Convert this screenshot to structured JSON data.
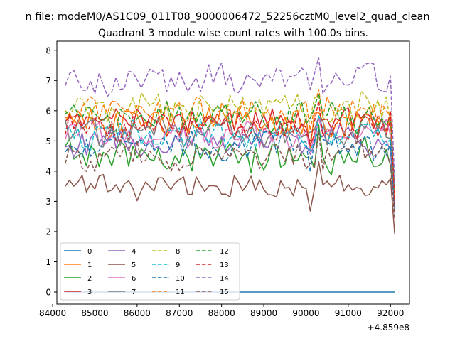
{
  "chart_data": {
    "type": "line",
    "suptitle": "n file: modeM0/AS1C09_011T08_9000006472_52256cztM0_level2_quad_clean",
    "title": "Quadrant 3 module wise count rates with 100.0s bins.",
    "xlabel": "",
    "ylabel": "",
    "x_offset_label": "+4.859e8",
    "xlim": [
      84100,
      92450
    ],
    "ylim": [
      -0.4,
      8.3
    ],
    "x_ticks": [
      84000,
      85000,
      86000,
      87000,
      88000,
      89000,
      90000,
      91000,
      92000
    ],
    "x_tick_labels": [
      "84000",
      "85000",
      "86000",
      "87000",
      "88000",
      "89000",
      "90000",
      "91000",
      "92000"
    ],
    "y_ticks": [
      0,
      1,
      2,
      3,
      4,
      5,
      6,
      7,
      8
    ],
    "y_tick_labels": [
      "0",
      "1",
      "2",
      "3",
      "4",
      "5",
      "6",
      "7",
      "8"
    ],
    "grid": false,
    "legend_position": "lower-left",
    "legend_columns": 4,
    "x": {
      "start": 84300,
      "step": 100,
      "count": 79
    },
    "series": [
      {
        "name": "0",
        "color": "#1f77b4",
        "style": "solid",
        "base": 0.0,
        "amp": 0.0,
        "end": 0.0
      },
      {
        "name": "1",
        "color": "#ff7f0e",
        "style": "solid",
        "base": 5.6,
        "amp": 0.5,
        "end": 3.1
      },
      {
        "name": "2",
        "color": "#2ca02c",
        "style": "solid",
        "base": 4.5,
        "amp": 0.5,
        "end": 3.0
      },
      {
        "name": "3",
        "color": "#d62728",
        "style": "solid",
        "base": 5.6,
        "amp": 0.4,
        "end": 2.9
      },
      {
        "name": "4",
        "color": "#9467bd",
        "style": "solid",
        "base": 5.0,
        "amp": 0.4,
        "end": 2.6
      },
      {
        "name": "5",
        "color": "#8c564b",
        "style": "solid",
        "base": 3.5,
        "amp": 0.35,
        "end": 1.9
      },
      {
        "name": "6",
        "color": "#e377c2",
        "style": "solid",
        "base": 5.2,
        "amp": 0.4,
        "end": 2.9
      },
      {
        "name": "7",
        "color": "#7f7f7f",
        "style": "solid",
        "base": 5.3,
        "amp": 0.4,
        "end": 2.8
      },
      {
        "name": "8",
        "color": "#bcbd22",
        "style": "dashed",
        "base": 6.1,
        "amp": 0.45,
        "end": 3.2
      },
      {
        "name": "9",
        "color": "#17becf",
        "style": "dashed",
        "base": 5.2,
        "amp": 0.4,
        "end": 2.7
      },
      {
        "name": "10",
        "color": "#1f77b4",
        "style": "dashed",
        "base": 4.8,
        "amp": 0.4,
        "end": 2.5
      },
      {
        "name": "11",
        "color": "#ff7f0e",
        "style": "dashed",
        "base": 6.0,
        "amp": 0.45,
        "end": 3.1
      },
      {
        "name": "12",
        "color": "#2ca02c",
        "style": "dashed",
        "base": 5.8,
        "amp": 0.45,
        "end": 3.3
      },
      {
        "name": "13",
        "color": "#d62728",
        "style": "dashed",
        "base": 5.5,
        "amp": 0.4,
        "end": 2.9
      },
      {
        "name": "14",
        "color": "#9467bd",
        "style": "dashed",
        "base": 7.0,
        "amp": 0.45,
        "end": 3.5
      },
      {
        "name": "15",
        "color": "#8c564b",
        "style": "dashed",
        "base": 4.5,
        "amp": 0.4,
        "end": 2.4
      }
    ]
  }
}
